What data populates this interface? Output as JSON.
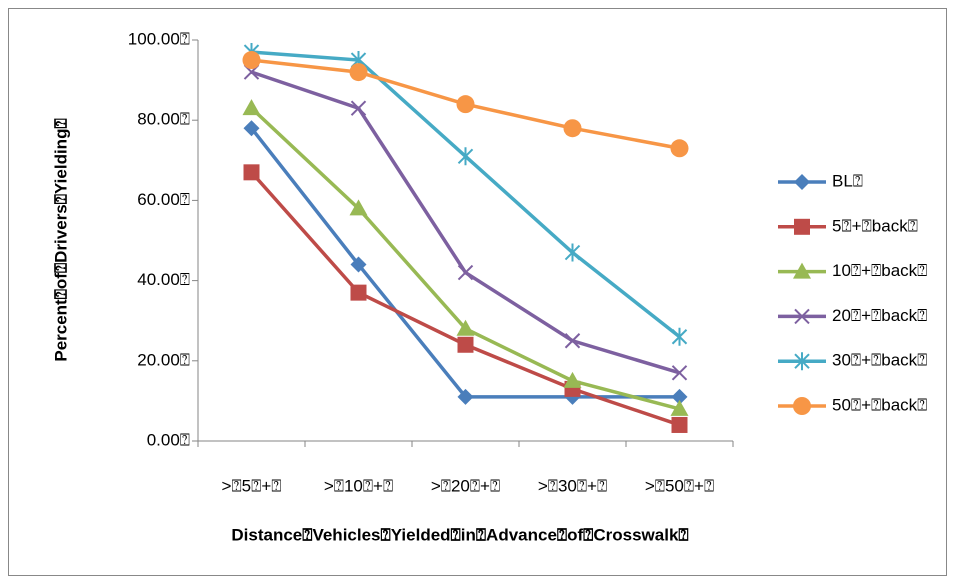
{
  "chart_data": {
    "type": "line",
    "y_label": "Percent⍰of⍰Drivers⍰Yielding⍰",
    "x_label": "Distance⍰Vehicles⍰Yielded⍰in⍰Advance⍰of⍰Crosswalk⍰",
    "categories": [
      ">⍰5⍰+⍰",
      ">⍰10⍰+⍰",
      ">⍰20⍰+⍰",
      ">⍰30⍰+⍰",
      ">⍰50⍰+⍰"
    ],
    "ylim": [
      0,
      100
    ],
    "yticks": [
      {
        "value": 0,
        "label": "0.00⍰"
      },
      {
        "value": 20,
        "label": "20.00⍰"
      },
      {
        "value": 40,
        "label": "40.00⍰"
      },
      {
        "value": 60,
        "label": "60.00⍰"
      },
      {
        "value": 80,
        "label": "80.00⍰"
      },
      {
        "value": 100,
        "label": "100.00⍰"
      }
    ],
    "legend": "right",
    "series": [
      {
        "name": "BL⍰",
        "color": "#4a7ebb",
        "marker": "diamond",
        "values": [
          78,
          44,
          11,
          11,
          11
        ]
      },
      {
        "name": "5⍰+⍰back⍰",
        "color": "#be4b48",
        "marker": "square",
        "values": [
          67,
          37,
          24,
          13,
          4
        ]
      },
      {
        "name": "10⍰+⍰back⍰",
        "color": "#98b954",
        "marker": "triangle",
        "values": [
          83,
          58,
          28,
          15,
          8
        ]
      },
      {
        "name": "20⍰+⍰back⍰",
        "color": "#7d60a0",
        "marker": "x",
        "values": [
          92,
          83,
          42,
          25,
          17
        ]
      },
      {
        "name": "30⍰+⍰back⍰",
        "color": "#46aac5",
        "marker": "star",
        "values": [
          97,
          95,
          71,
          47,
          26
        ]
      },
      {
        "name": "50⍰+⍰back⍰",
        "color": "#f79646",
        "marker": "circle",
        "values": [
          95,
          92,
          84,
          78,
          73
        ]
      }
    ]
  }
}
